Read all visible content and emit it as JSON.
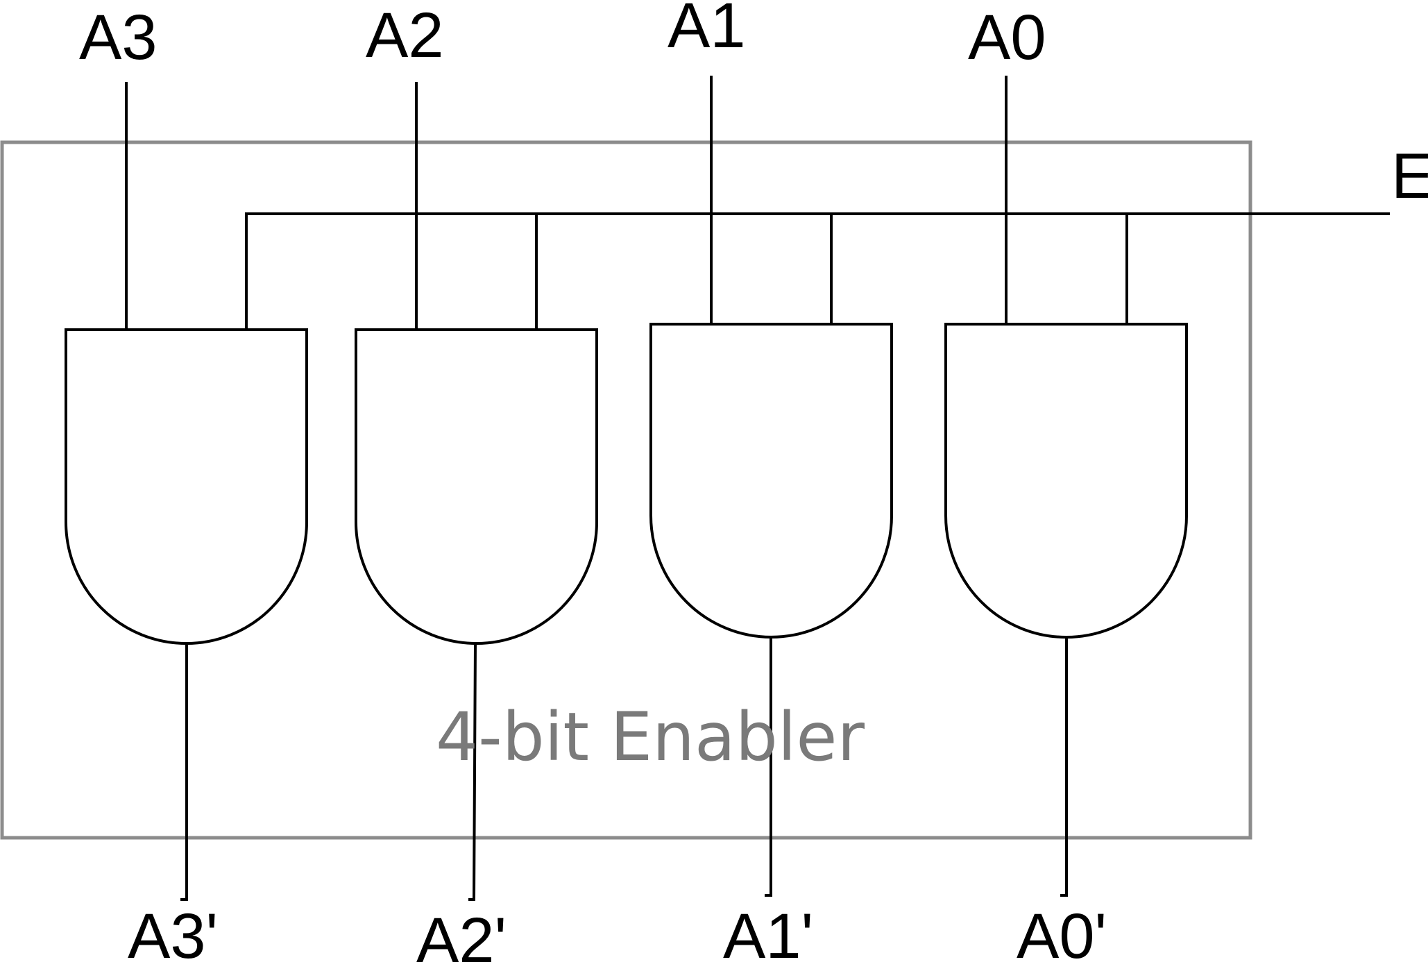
{
  "inputs": {
    "a3": "A3",
    "a2": "A2",
    "a1": "A1",
    "a0": "A0",
    "enable": "E"
  },
  "outputs": {
    "a3": "A3'",
    "a2": "A2'",
    "a1": "A1'",
    "a0": "A0'"
  },
  "block_label": "4-bit Enabler",
  "colors": {
    "wire": "#000000",
    "box": "#8c8c8c",
    "block_label": "#7a7a7a"
  }
}
